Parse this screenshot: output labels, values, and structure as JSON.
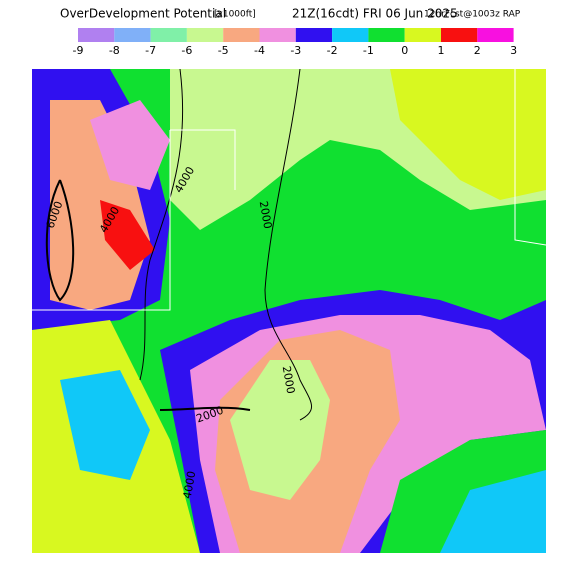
{
  "title": {
    "name": "OverDevelopment Potential",
    "units": "[x1000ft]",
    "time": "21Z(16cdt) FRI 06 Jun 2025",
    "model": "12hrFcst@1003z RAP"
  },
  "legend": {
    "colors": [
      "#b080f0",
      "#80b0f8",
      "#80f0a8",
      "#c8f890",
      "#f8a880",
      "#f090e0",
      "#3010f0",
      "#10c8f8",
      "#10e030",
      "#d8f820",
      "#f81010",
      "#f810e0"
    ],
    "labels": [
      "-9",
      "-8",
      "-7",
      "-6",
      "-5",
      "-4",
      "-3",
      "-2",
      "-1",
      "0",
      "1",
      "2",
      "3"
    ]
  },
  "map": {
    "contour_labels": [
      "6000",
      "4000",
      "4000",
      "2000",
      "2000",
      "2000",
      "4000"
    ]
  }
}
